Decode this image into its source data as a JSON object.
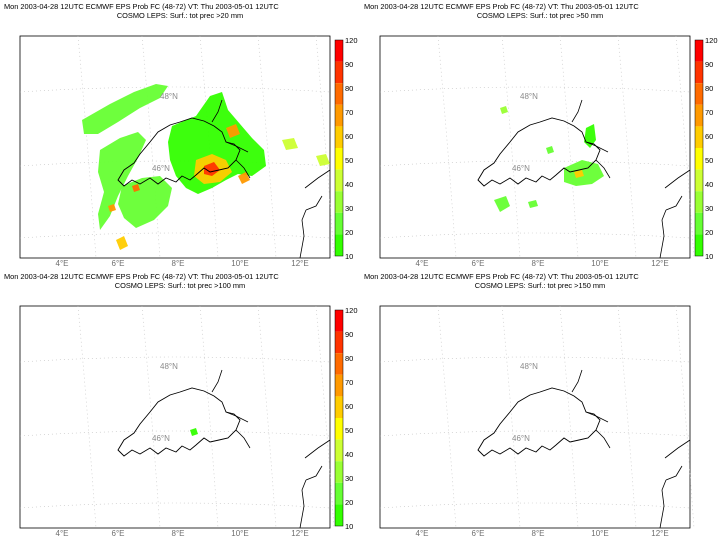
{
  "panels": [
    {
      "line1": "Mon 2003-04-28 12UTC ECMWF EPS Prob FC (48-72) VT: Thu 2003-05-01 12UTC",
      "line2": "COSMO LEPS: Surf.: tot prec >20 mm",
      "lon_labels": [
        "4°E",
        "6°E",
        "8°E",
        "10°E",
        "12°E"
      ],
      "lat_labels": [
        "48°N",
        "46°N"
      ],
      "has_colorbar": true,
      "precip_extent": "large"
    },
    {
      "line1": "Mon 2003-04-28 12UTC ECMWF EPS Prob FC (48-72) VT: Thu 2003-05-01 12UTC",
      "line2": "COSMO LEPS: Surf.: tot prec >50 mm",
      "lon_labels": [
        "4°E",
        "6°E",
        "8°E",
        "10°E",
        "12°E"
      ],
      "lat_labels": [
        "48°N",
        "46°N"
      ],
      "has_colorbar": true,
      "precip_extent": "medium"
    },
    {
      "line1": "Mon 2003-04-28 12UTC ECMWF EPS Prob FC (48-72) VT: Thu 2003-05-01 12UTC",
      "line2": "COSMO LEPS: Surf.: tot prec >100 mm",
      "lon_labels": [
        "4°E",
        "6°E",
        "8°E",
        "10°E",
        "12°E"
      ],
      "lat_labels": [
        "48°N",
        "46°N"
      ],
      "has_colorbar": true,
      "precip_extent": "tiny"
    },
    {
      "line1": "Mon 2003-04-28 12UTC ECMWF EPS Prob FC (48-72) VT: Thu 2003-05-01 12UTC",
      "line2": "COSMO LEPS: Surf.: tot prec >150 mm",
      "lon_labels": [
        "4°E",
        "6°E",
        "8°E",
        "10°E",
        "12°E"
      ],
      "lat_labels": [
        "48°N",
        "46°N"
      ],
      "has_colorbar": false,
      "precip_extent": "none"
    }
  ],
  "colorbar": {
    "labels": [
      "120",
      "90",
      "80",
      "70",
      "60",
      "50",
      "40",
      "30",
      "20",
      "10"
    ],
    "colors": [
      "#ff0000",
      "#ff3300",
      "#ff6a00",
      "#ff9900",
      "#ffcc00",
      "#ffff00",
      "#ccff33",
      "#99ff33",
      "#66ff33",
      "#33ff00"
    ]
  }
}
